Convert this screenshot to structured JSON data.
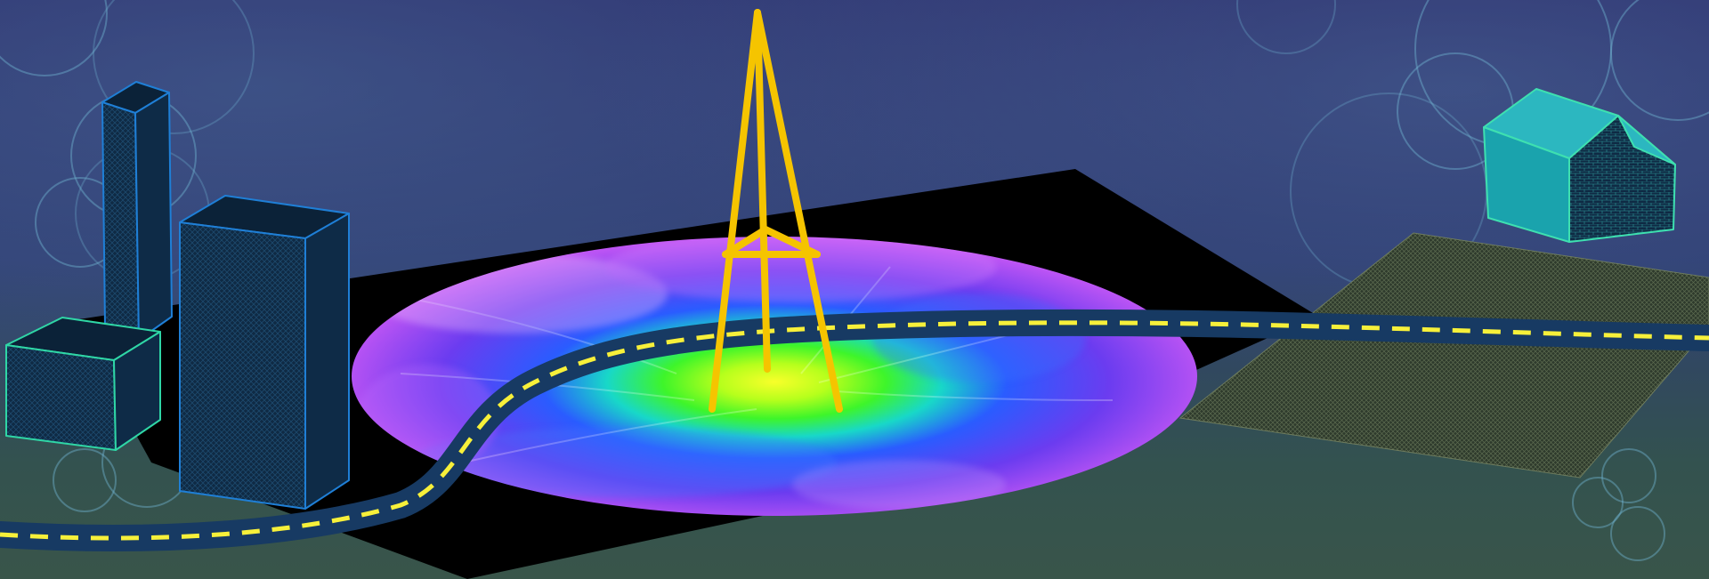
{
  "scene": {
    "colors": {
      "sky_top": "#2b2c6b",
      "sky_mid": "#2f3d72",
      "ground_bottom": "#39554a",
      "bubble": "#6fb2cf",
      "tower": "#f5c400",
      "road": "#173a63",
      "road_dash": "#f7f03a",
      "building_face": "#0f2a44",
      "building_edge": "#1f7fd6",
      "green_edge": "#2fd6a6",
      "house_roof": "#2cb7c0",
      "house_wall": "#1aa3ad",
      "house_edge": "#3ee0b0",
      "field": "#3d4a3a",
      "ground_plate": "#000000"
    },
    "icons": [
      "signal-tower-icon",
      "road-icon",
      "skyscraper-icon",
      "house-icon",
      "coverage-heatmap-icon",
      "field-icon"
    ]
  }
}
